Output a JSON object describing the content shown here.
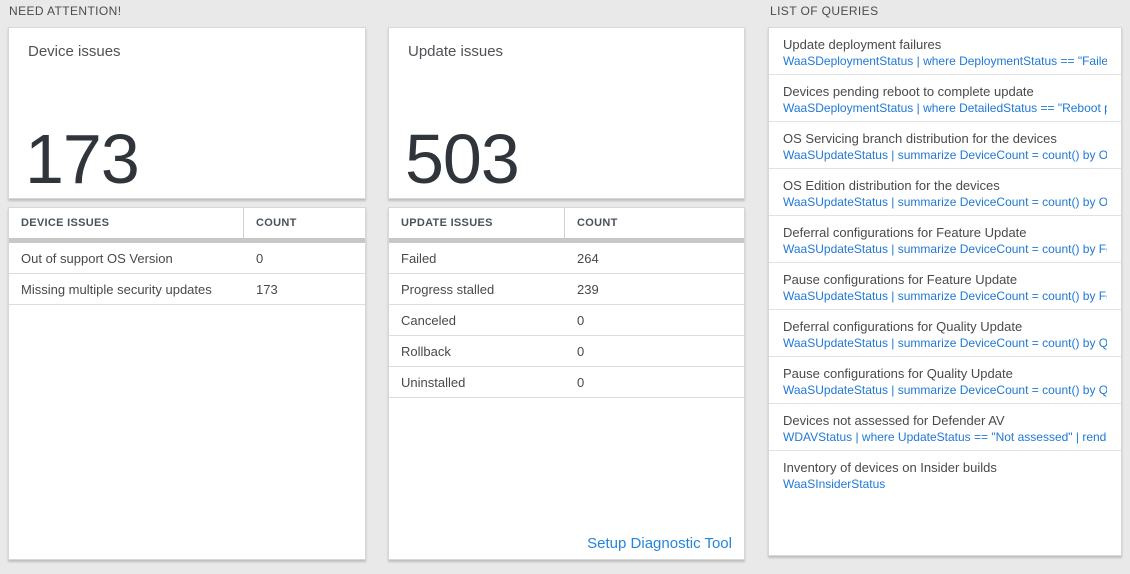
{
  "colors": {
    "page_background": "#e9e9e9",
    "card_background": "#ffffff",
    "accent_blue": "#2079d5",
    "link_blue": "#2486d9",
    "big_number": "#30353b",
    "table_header_bar": "#c7c7c7"
  },
  "need_attention": {
    "label": "NEED ATTENTION!",
    "cards": [
      {
        "title": "Device issues",
        "value": "173",
        "table": {
          "headers": [
            "DEVICE ISSUES",
            "COUNT"
          ],
          "rows": [
            {
              "name": "Out of support OS Version",
              "count": "0"
            },
            {
              "name": "Missing multiple security updates",
              "count": "173"
            }
          ]
        }
      },
      {
        "title": "Update issues",
        "value": "503",
        "table": {
          "headers": [
            "UPDATE ISSUES",
            "COUNT"
          ],
          "rows": [
            {
              "name": "Failed",
              "count": "264"
            },
            {
              "name": "Progress stalled",
              "count": "239"
            },
            {
              "name": "Canceled",
              "count": "0"
            },
            {
              "name": "Rollback",
              "count": "0"
            },
            {
              "name": "Uninstalled",
              "count": "0"
            }
          ]
        },
        "footer_link": "Setup Diagnostic Tool"
      }
    ]
  },
  "queries": {
    "label": "LIST OF QUERIES",
    "items": [
      {
        "title": "Update deployment failures",
        "query": "WaaSDeploymentStatus | where DeploymentStatus == \"Failed\" |..."
      },
      {
        "title": "Devices pending reboot to complete update",
        "query": "WaaSDeploymentStatus | where DetailedStatus == \"Reboot pend..."
      },
      {
        "title": "OS Servicing branch distribution for the devices",
        "query": "WaaSUpdateStatus | summarize DeviceCount = count() by OSSer..."
      },
      {
        "title": "OS Edition distribution for the devices",
        "query": "WaaSUpdateStatus | summarize DeviceCount = count() by OSEdit..."
      },
      {
        "title": "Deferral configurations for Feature Update",
        "query": "WaaSUpdateStatus | summarize DeviceCount = count() by Featur..."
      },
      {
        "title": "Pause configurations for Feature Update",
        "query": "WaaSUpdateStatus | summarize DeviceCount = count() by Featur..."
      },
      {
        "title": "Deferral configurations for Quality Update",
        "query": "WaaSUpdateStatus | summarize DeviceCount = count() by Qualit..."
      },
      {
        "title": "Pause configurations for Quality Update",
        "query": "WaaSUpdateStatus | summarize DeviceCount = count() by Qualit..."
      },
      {
        "title": "Devices not assessed for Defender AV",
        "query": "WDAVStatus | where UpdateStatus == \"Not assessed\" | render ta..."
      },
      {
        "title": "Inventory of devices on Insider builds",
        "query": "WaaSInsiderStatus"
      }
    ]
  }
}
